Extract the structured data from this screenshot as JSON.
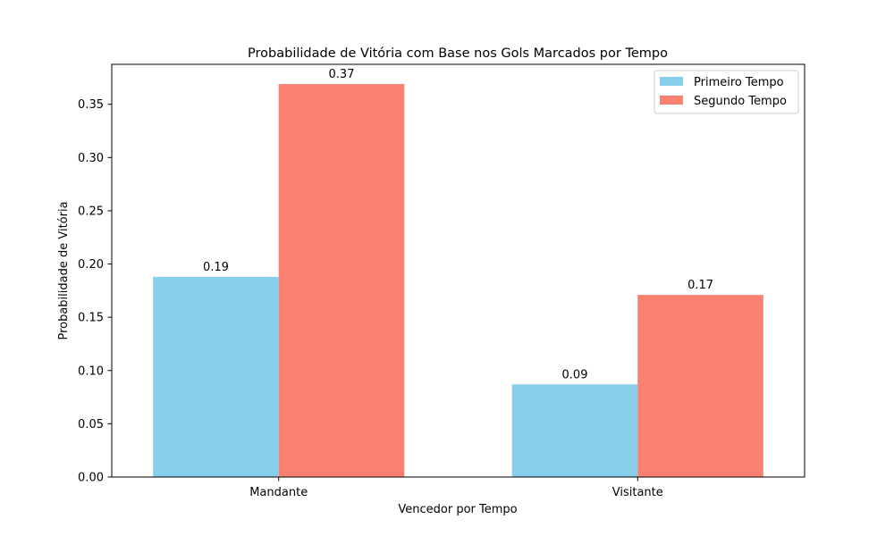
{
  "chart_data": {
    "type": "bar",
    "title": "Probabilidade de Vitória com Base nos Gols Marcados por Tempo",
    "xlabel": "Vencedor por Tempo",
    "ylabel": "Probabilidade de Vitória",
    "categories": [
      "Mandante",
      "Visitante"
    ],
    "series": [
      {
        "name": "Primeiro Tempo",
        "values": [
          0.188,
          0.087
        ],
        "labels": [
          "0.19",
          "0.09"
        ],
        "color": "#87ceeb"
      },
      {
        "name": "Segundo Tempo",
        "values": [
          0.369,
          0.171
        ],
        "labels": [
          "0.37",
          "0.17"
        ],
        "color": "#fa8072"
      }
    ],
    "ylim": [
      0,
      0.3875
    ],
    "yticks": [
      "0.00",
      "0.05",
      "0.10",
      "0.15",
      "0.20",
      "0.25",
      "0.30",
      "0.35"
    ],
    "grid": false,
    "legend_position": "top-right"
  }
}
